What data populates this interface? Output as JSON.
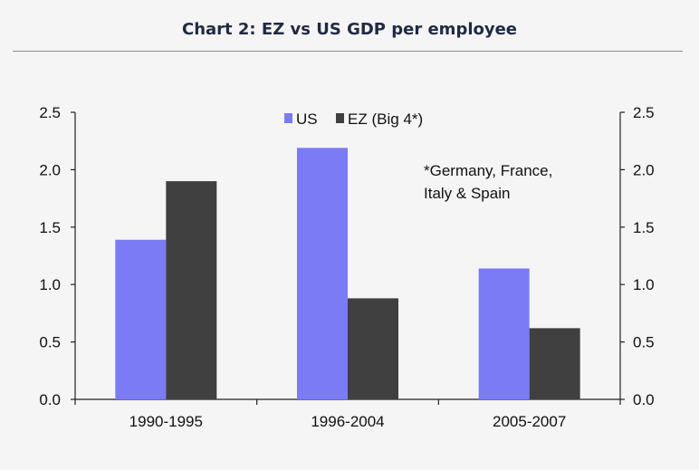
{
  "title": "Chart 2: EZ vs US GDP per employee",
  "chart_data": {
    "type": "bar",
    "title": "Chart 2: EZ vs US GDP per employee",
    "categories": [
      "1990-1995",
      "1996-2004",
      "2005-2007"
    ],
    "series": [
      {
        "name": "US",
        "values": [
          1.39,
          2.19,
          1.14
        ],
        "color": "#7b7bf5"
      },
      {
        "name": "EZ (Big 4*)",
        "values": [
          1.9,
          0.88,
          0.62
        ],
        "color": "#404040"
      }
    ],
    "ylim": [
      0,
      2.5
    ],
    "yticks": [
      "0.0",
      "0.5",
      "1.0",
      "1.5",
      "2.0",
      "2.5"
    ],
    "y2ticks": [
      "0.0",
      "0.5",
      "1.0",
      "1.5",
      "2.0",
      "2.5"
    ],
    "legend_position": "top-center",
    "annotation": [
      "*Germany, France,",
      "Italy & Spain"
    ],
    "grid": false
  }
}
